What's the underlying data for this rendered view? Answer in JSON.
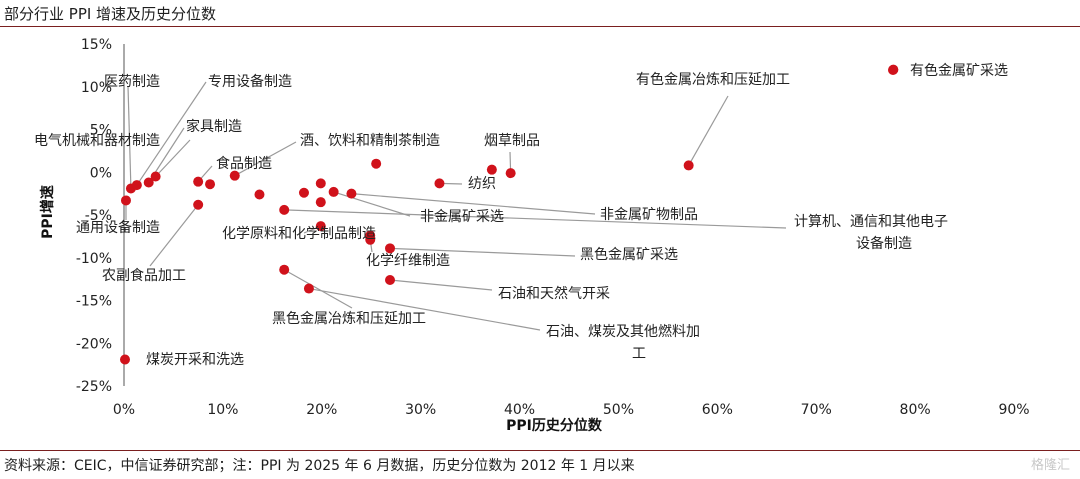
{
  "title": "部分行业 PPI 增速及历史分位数",
  "source": "资料来源：CEIC，中信证券研究部；注：PPI 为 2025 年 6 月数据，历史分位数为 2012 年 1 月以来",
  "watermark": "格隆汇",
  "chart_data": {
    "type": "scatter",
    "xlabel": "PPI历史分位数",
    "ylabel": "PPI增速",
    "xlim": [
      0,
      90
    ],
    "ylim": [
      -25,
      15
    ],
    "x_ticks": [
      "0%",
      "10%",
      "20%",
      "30%",
      "40%",
      "50%",
      "60%",
      "70%",
      "80%",
      "90%"
    ],
    "y_ticks": [
      "15%",
      "10%",
      "5%",
      "0%",
      "-5%",
      "-10%",
      "-15%",
      "-20%",
      "-25%"
    ],
    "marker_color": "#d0121b",
    "leader_color": "#9a9a9a",
    "legend": {
      "label": "有色金属矿采选",
      "position": "top-right"
    },
    "points": [
      {
        "x": 0.2,
        "y": -3.3
      },
      {
        "x": 0.7,
        "y": -1.9
      },
      {
        "x": 1.3,
        "y": -1.5
      },
      {
        "x": 2.5,
        "y": -1.2
      },
      {
        "x": 3.2,
        "y": -0.5
      },
      {
        "x": 7.5,
        "y": -1.1
      },
      {
        "x": 7.5,
        "y": -3.8
      },
      {
        "x": 8.7,
        "y": -1.4
      },
      {
        "x": 11.2,
        "y": -0.4
      },
      {
        "x": 13.7,
        "y": -2.6
      },
      {
        "x": 16.2,
        "y": -4.4
      },
      {
        "x": 16.2,
        "y": -11.4
      },
      {
        "x": 18.2,
        "y": -2.4
      },
      {
        "x": 18.7,
        "y": -13.6
      },
      {
        "x": 19.9,
        "y": -1.3
      },
      {
        "x": 19.9,
        "y": -3.5
      },
      {
        "x": 19.9,
        "y": -6.3
      },
      {
        "x": 21.2,
        "y": -2.3
      },
      {
        "x": 23.0,
        "y": -2.5
      },
      {
        "x": 24.9,
        "y": -7.4
      },
      {
        "x": 24.9,
        "y": -7.9
      },
      {
        "x": 25.5,
        "y": 1.0
      },
      {
        "x": 26.9,
        "y": -8.9
      },
      {
        "x": 26.9,
        "y": -12.6
      },
      {
        "x": 31.9,
        "y": -1.3
      },
      {
        "x": 37.2,
        "y": 0.3
      },
      {
        "x": 39.1,
        "y": -0.1
      },
      {
        "x": 57.1,
        "y": 0.8
      },
      {
        "x": 77.8,
        "y": 12.0
      }
    ],
    "annotations": [
      {
        "text": "医药制造",
        "point": 1
      },
      {
        "text": "专用设备制造",
        "point": 2
      },
      {
        "text": "家具制造",
        "point": 3
      },
      {
        "text": "电气机械和器材制造",
        "point": 4
      },
      {
        "text": "酒、饮料和精制茶制造",
        "point": 8
      },
      {
        "text": "烟草制品",
        "point": 26
      },
      {
        "text": "食品制造",
        "point": 5
      },
      {
        "text": "纺织",
        "point": 24
      },
      {
        "text": "通用设备制造",
        "point": 0
      },
      {
        "text": "非金属矿采选",
        "point": 17
      },
      {
        "text": "非金属矿物制品",
        "point": 18
      },
      {
        "text": "化学原料和化学制品制造",
        "point": 16
      },
      {
        "text": "计算机、通信和其他电子",
        "point": 10
      },
      {
        "text": "设备制造",
        "point": null
      },
      {
        "text": "黑色金属矿采选",
        "point": 22
      },
      {
        "text": "化学纤维制造",
        "point": 20
      },
      {
        "text": "农副食品加工",
        "point": 6
      },
      {
        "text": "石油和天然气开采",
        "point": 23
      },
      {
        "text": "黑色金属冶炼和压延加工",
        "point": 11
      },
      {
        "text": "石油、煤炭及其他燃料加",
        "point": 13
      },
      {
        "text": "工",
        "point": null
      },
      {
        "text": "煤炭开采和洗选",
        "point": null
      },
      {
        "text": "有色金属冶炼和压延加工",
        "point": 27
      }
    ],
    "extra_points": [
      {
        "x": 0.1,
        "y": -21.9
      }
    ]
  }
}
